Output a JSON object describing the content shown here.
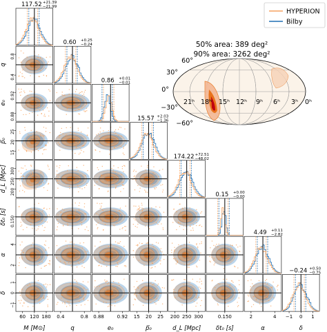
{
  "chart_data": {
    "type": "corner",
    "legend": {
      "placement": "top-right",
      "entries": [
        {
          "name": "HYPERION",
          "color": "#f5a15e"
        },
        {
          "name": "Bilby",
          "color": "#1f6fb4"
        }
      ]
    },
    "colors": {
      "orange": "#f5a15e",
      "orange_fill": "#f7a25c",
      "orange_dark": "#e8731c",
      "blue": "#1f6fb4",
      "blue_fill": "#3c86c6",
      "truth": "#000000"
    },
    "parameters": [
      {
        "label": "M [M⊙]",
        "median_label": "117.52",
        "plus": "+21.39",
        "minus": "−21.99",
        "range": [
          40,
          180
        ],
        "truth": 120,
        "ticks": [
          "60",
          "120",
          "180"
        ]
      },
      {
        "label": "q",
        "median_label": "0.60",
        "plus": "+0.25",
        "minus": "−0.24",
        "range": [
          0.15,
          0.85
        ],
        "truth": 0.6,
        "ticks": [
          "0.4",
          "0.8"
        ]
      },
      {
        "label": "e₀",
        "median_label": "0.86",
        "plus": "+0.01",
        "minus": "−0.01",
        "range": [
          0.84,
          0.945
        ],
        "truth": 0.862,
        "ticks": [
          "0.88",
          "0.92"
        ]
      },
      {
        "label": "p̅₀",
        "median_label": "15.57",
        "plus": "+2.03",
        "minus": "−1.36",
        "range": [
          10,
          27
        ],
        "truth": 15.5,
        "ticks": [
          "15",
          "20",
          "25"
        ]
      },
      {
        "label": "d_L [Mpc]",
        "median_label": "174.22",
        "plus": "+72.51",
        "minus": "−48.02",
        "range": [
          100,
          350
        ],
        "truth": 175,
        "ticks": [
          "200",
          "250",
          "300"
        ]
      },
      {
        "label": "δt₀ [s]",
        "median_label": "0.15",
        "plus": "+0.00",
        "minus": "−0.00",
        "range": [
          0.135,
          0.165
        ],
        "truth": 0.15,
        "ticks": [
          "0.150"
        ]
      },
      {
        "label": "α",
        "median_label": "4.49",
        "plus": "+0.11",
        "minus": "−2.82",
        "range": [
          0,
          6
        ],
        "truth": 4.5,
        "ticks": [
          "2",
          "4"
        ]
      },
      {
        "label": "δ",
        "median_label": "−0.24",
        "plus": "+0.50",
        "minus": "−0.75",
        "range": [
          -1.5,
          1.5
        ],
        "truth": -0.24,
        "ticks": [
          "−1",
          "0",
          "1"
        ]
      }
    ],
    "yticks": {
      "1": [
        "0.4",
        "0.8"
      ],
      "2": [
        "0.88",
        "0.92"
      ],
      "3": [
        "15",
        "20",
        "25"
      ],
      "4": [
        "200",
        "250",
        "300"
      ],
      "5": [
        "0.150"
      ],
      "6": [
        "2",
        "4"
      ],
      "7": [
        "−1",
        "0",
        "1"
      ]
    },
    "skymap": {
      "area_50": "50% area: 389 deg²",
      "area_90": "90% area: 3262 deg²",
      "ra_labels": [
        "21ʰ",
        "18ʰ",
        "15ʰ",
        "12ʰ",
        "9ʰ",
        "6ʰ",
        "3ʰ",
        "0ʰ"
      ],
      "dec_labels": [
        "60°",
        "30°",
        "0°",
        "−30°",
        "−60°"
      ]
    }
  }
}
